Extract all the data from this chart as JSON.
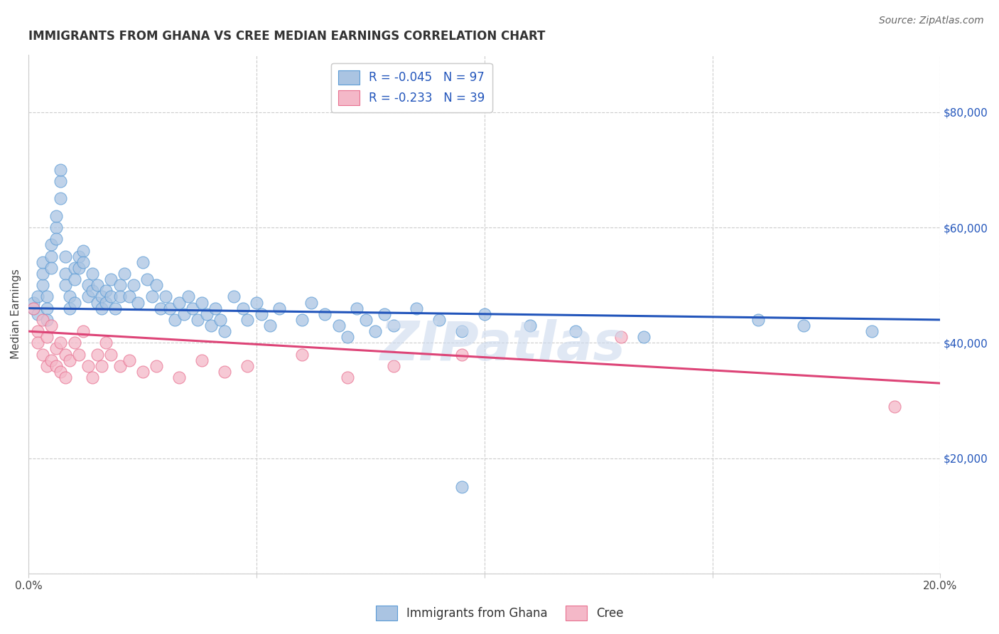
{
  "title": "IMMIGRANTS FROM GHANA VS CREE MEDIAN EARNINGS CORRELATION CHART",
  "source": "Source: ZipAtlas.com",
  "ylabel": "Median Earnings",
  "xlim": [
    0.0,
    0.2
  ],
  "ylim": [
    0,
    90000
  ],
  "yticks": [
    0,
    20000,
    40000,
    60000,
    80000
  ],
  "ytick_labels_right": [
    "",
    "$20,000",
    "$40,000",
    "$60,000",
    "$80,000"
  ],
  "xticks": [
    0.0,
    0.05,
    0.1,
    0.15,
    0.2
  ],
  "xtick_labels": [
    "0.0%",
    "",
    "",
    "",
    "20.0%"
  ],
  "legend1_label": "R = -0.045   N = 97",
  "legend2_label": "R = -0.233   N = 39",
  "ghana_fill_color": "#aac4e2",
  "ghana_edge_color": "#5b9bd5",
  "cree_fill_color": "#f4b8c8",
  "cree_edge_color": "#e87090",
  "ghana_line_color": "#2255bb",
  "cree_line_color": "#dd4477",
  "watermark": "ZIPatlas",
  "title_fontsize": 12,
  "axis_label_fontsize": 11,
  "tick_fontsize": 11,
  "legend_fontsize": 12,
  "legend_text_color": "#2255bb",
  "ghana_line_y0": 46000,
  "ghana_line_y1": 44000,
  "cree_line_y0": 42000,
  "cree_line_y1": 33000,
  "ghana_x": [
    0.001,
    0.001,
    0.002,
    0.002,
    0.003,
    0.003,
    0.003,
    0.004,
    0.004,
    0.004,
    0.005,
    0.005,
    0.005,
    0.006,
    0.006,
    0.006,
    0.007,
    0.007,
    0.007,
    0.008,
    0.008,
    0.008,
    0.009,
    0.009,
    0.01,
    0.01,
    0.01,
    0.011,
    0.011,
    0.012,
    0.012,
    0.013,
    0.013,
    0.014,
    0.014,
    0.015,
    0.015,
    0.016,
    0.016,
    0.017,
    0.017,
    0.018,
    0.018,
    0.019,
    0.02,
    0.02,
    0.021,
    0.022,
    0.023,
    0.024,
    0.025,
    0.026,
    0.027,
    0.028,
    0.029,
    0.03,
    0.031,
    0.032,
    0.033,
    0.034,
    0.035,
    0.036,
    0.037,
    0.038,
    0.039,
    0.04,
    0.041,
    0.042,
    0.043,
    0.045,
    0.047,
    0.048,
    0.05,
    0.051,
    0.053,
    0.055,
    0.06,
    0.062,
    0.065,
    0.068,
    0.07,
    0.072,
    0.074,
    0.076,
    0.078,
    0.08,
    0.085,
    0.09,
    0.095,
    0.1,
    0.11,
    0.12,
    0.135,
    0.095,
    0.16,
    0.17,
    0.185
  ],
  "ghana_y": [
    46000,
    47000,
    48000,
    45000,
    50000,
    52000,
    54000,
    48000,
    46000,
    44000,
    55000,
    57000,
    53000,
    60000,
    62000,
    58000,
    65000,
    68000,
    70000,
    55000,
    52000,
    50000,
    48000,
    46000,
    53000,
    51000,
    47000,
    55000,
    53000,
    56000,
    54000,
    50000,
    48000,
    52000,
    49000,
    47000,
    50000,
    48000,
    46000,
    49000,
    47000,
    51000,
    48000,
    46000,
    50000,
    48000,
    52000,
    48000,
    50000,
    47000,
    54000,
    51000,
    48000,
    50000,
    46000,
    48000,
    46000,
    44000,
    47000,
    45000,
    48000,
    46000,
    44000,
    47000,
    45000,
    43000,
    46000,
    44000,
    42000,
    48000,
    46000,
    44000,
    47000,
    45000,
    43000,
    46000,
    44000,
    47000,
    45000,
    43000,
    41000,
    46000,
    44000,
    42000,
    45000,
    43000,
    46000,
    44000,
    42000,
    45000,
    43000,
    42000,
    41000,
    15000,
    44000,
    43000,
    42000
  ],
  "cree_x": [
    0.001,
    0.002,
    0.002,
    0.003,
    0.003,
    0.004,
    0.004,
    0.005,
    0.005,
    0.006,
    0.006,
    0.007,
    0.007,
    0.008,
    0.008,
    0.009,
    0.01,
    0.011,
    0.012,
    0.013,
    0.014,
    0.015,
    0.016,
    0.017,
    0.018,
    0.02,
    0.022,
    0.025,
    0.028,
    0.033,
    0.038,
    0.043,
    0.048,
    0.06,
    0.07,
    0.08,
    0.095,
    0.13,
    0.19
  ],
  "cree_y": [
    46000,
    42000,
    40000,
    44000,
    38000,
    41000,
    36000,
    43000,
    37000,
    39000,
    36000,
    40000,
    35000,
    38000,
    34000,
    37000,
    40000,
    38000,
    42000,
    36000,
    34000,
    38000,
    36000,
    40000,
    38000,
    36000,
    37000,
    35000,
    36000,
    34000,
    37000,
    35000,
    36000,
    38000,
    34000,
    36000,
    38000,
    41000,
    29000
  ]
}
